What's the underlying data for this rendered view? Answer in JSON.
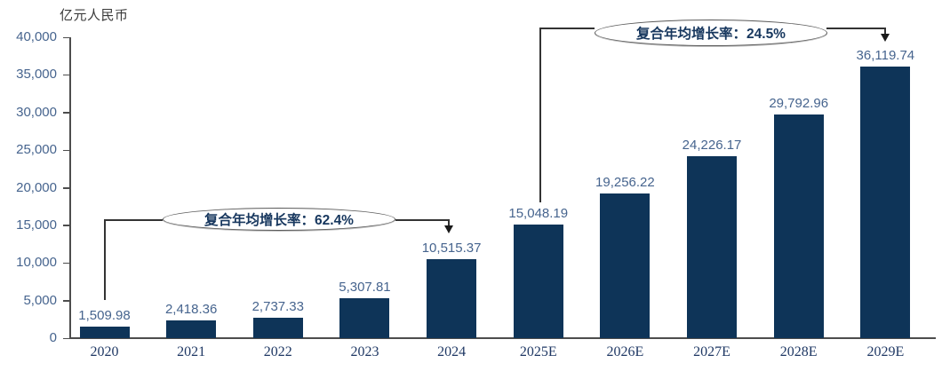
{
  "chart_data": {
    "type": "bar",
    "title": "",
    "unit_label": "亿元人民币",
    "categories": [
      "2020",
      "2021",
      "2022",
      "2023",
      "2024",
      "2025E",
      "2026E",
      "2027E",
      "2028E",
      "2029E"
    ],
    "values": [
      1509.98,
      2418.36,
      2737.33,
      5307.81,
      10515.37,
      15048.19,
      19256.22,
      24226.17,
      29792.96,
      36119.74
    ],
    "value_labels": [
      "1,509.98",
      "2,418.36",
      "2,737.33",
      "5,307.81",
      "10,515.37",
      "15,048.19",
      "19,256.22",
      "24,226.17",
      "29,792.96",
      "36,119.74"
    ],
    "ylim": [
      0,
      40000
    ],
    "ytick_step": 5000,
    "ytick_labels": [
      "0",
      "5,000",
      "10,000",
      "15,000",
      "20,000",
      "25,000",
      "30,000",
      "35,000",
      "40,000"
    ],
    "grid": false,
    "legend": "none",
    "annotations": [
      {
        "text": "复合年均增长率：62.4%",
        "from_category": "2020",
        "to_category": "2024"
      },
      {
        "text": "复合年均增长率：24.5%",
        "from_category": "2025E",
        "to_category": "2029E"
      }
    ],
    "colors": {
      "bar": "#0E3458",
      "value_label": "#46648E",
      "axis_tick_label": "#46648E",
      "category_label": "#1F3864",
      "annotation_text": "#17375E",
      "axis_line": "#4d4d4d",
      "connector_line": "#333333"
    }
  }
}
